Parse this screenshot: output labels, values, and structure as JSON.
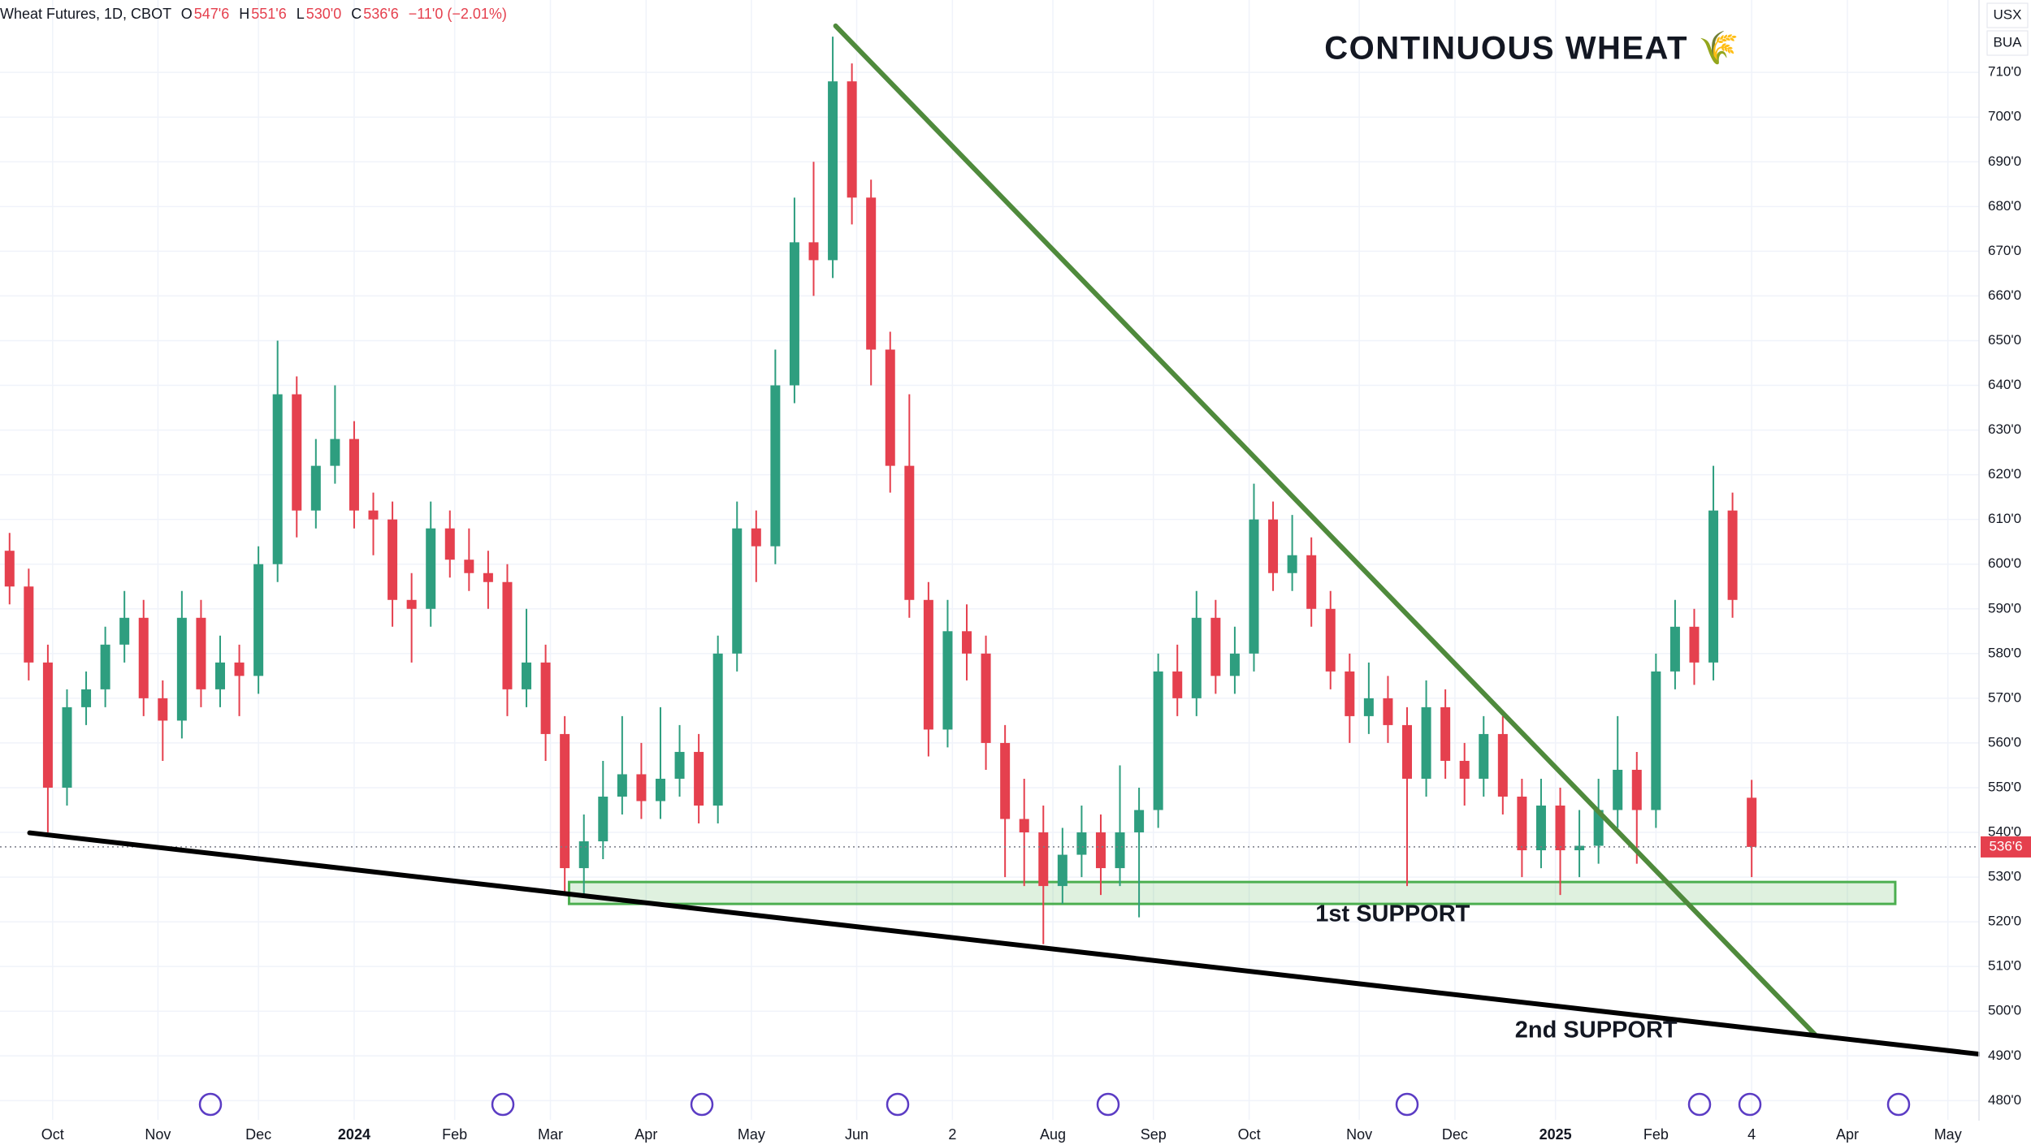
{
  "chart_data": {
    "type": "candlestick",
    "symbol": "Wheat Futures, 1D, CBOT",
    "legend_values": [
      {
        "label": "O",
        "value": "547'6"
      },
      {
        "label": "H",
        "value": "551'6"
      },
      {
        "label": "L",
        "value": "530'0"
      },
      {
        "label": "C",
        "value": "536'6"
      }
    ],
    "change": "−11'0 (−2.01%)",
    "title": "CONTINUOUS WHEAT 🌾",
    "currency": "USX",
    "unit": "BUA",
    "up_color": "#2e9e7f",
    "down_color": "#e5404e",
    "x": [
      2,
      6,
      10,
      14,
      18,
      22,
      26,
      30,
      34,
      38,
      42,
      46,
      50,
      54,
      58,
      62,
      66,
      70,
      74,
      78,
      82,
      86,
      90,
      94,
      98,
      102,
      106,
      110,
      114,
      118,
      122,
      126,
      130,
      134,
      138,
      142,
      146,
      150,
      154,
      158,
      162,
      166,
      170,
      174,
      178,
      182,
      186,
      190,
      194,
      198,
      202,
      206,
      210,
      214,
      218,
      222,
      226,
      230,
      234,
      238,
      242,
      246,
      250,
      254,
      258,
      262,
      266,
      270,
      274,
      278,
      282,
      286,
      290,
      294,
      298,
      302,
      306,
      310,
      314,
      318,
      322,
      326,
      330,
      334,
      338,
      342,
      346,
      350,
      354,
      358,
      362,
      366
    ],
    "open": [
      603,
      595,
      578,
      550,
      568,
      572,
      582,
      588,
      570,
      565,
      588,
      572,
      578,
      575,
      600,
      638,
      612,
      622,
      628,
      612,
      610,
      592,
      590,
      608,
      601,
      598,
      596,
      572,
      578,
      562,
      532,
      538,
      548,
      553,
      547,
      552,
      558,
      546,
      580,
      608,
      604,
      640,
      672,
      668,
      708,
      682,
      648,
      622,
      592,
      563,
      585,
      580,
      560,
      543,
      540,
      528,
      535,
      540,
      532,
      540,
      545,
      576,
      570,
      588,
      575,
      580,
      610,
      598,
      602,
      590,
      576,
      566,
      570,
      564,
      552,
      568,
      556,
      552,
      562,
      548,
      536,
      546,
      536,
      537,
      545,
      554,
      545,
      576,
      586,
      578,
      612,
      547.75
    ],
    "high": [
      607,
      599,
      582,
      572,
      576,
      586,
      594,
      592,
      574,
      594,
      592,
      584,
      582,
      604,
      650,
      642,
      628,
      640,
      632,
      616,
      614,
      598,
      614,
      612,
      608,
      603,
      600,
      590,
      582,
      566,
      544,
      556,
      566,
      560,
      568,
      564,
      562,
      584,
      614,
      612,
      648,
      682,
      690,
      718,
      712,
      686,
      652,
      638,
      596,
      592,
      591,
      584,
      564,
      552,
      546,
      541,
      546,
      544,
      555,
      550,
      580,
      582,
      594,
      592,
      586,
      618,
      614,
      611,
      606,
      594,
      580,
      578,
      575,
      568,
      574,
      572,
      560,
      566,
      566,
      552,
      552,
      550,
      545,
      552,
      566,
      558,
      580,
      592,
      590,
      622,
      616,
      551.75
    ],
    "low": [
      591,
      574,
      540,
      546,
      564,
      568,
      578,
      566,
      556,
      561,
      568,
      568,
      566,
      571,
      596,
      606,
      608,
      618,
      608,
      602,
      586,
      578,
      586,
      597,
      594,
      590,
      566,
      568,
      556,
      526,
      526,
      534,
      544,
      543,
      543,
      548,
      542,
      542,
      576,
      596,
      600,
      636,
      660,
      664,
      676,
      640,
      616,
      588,
      557,
      559,
      574,
      554,
      530,
      528,
      515,
      524,
      530,
      526,
      528,
      521,
      541,
      566,
      566,
      571,
      571,
      576,
      594,
      594,
      586,
      572,
      560,
      562,
      560,
      528,
      548,
      552,
      546,
      548,
      544,
      530,
      532,
      526,
      530,
      533,
      541,
      533,
      541,
      572,
      573,
      574,
      588,
      530
    ],
    "close": [
      595,
      578,
      550,
      568,
      572,
      582,
      588,
      570,
      565,
      588,
      572,
      578,
      575,
      600,
      638,
      612,
      622,
      628,
      612,
      610,
      592,
      590,
      608,
      601,
      598,
      596,
      572,
      578,
      562,
      532,
      538,
      548,
      553,
      547,
      552,
      558,
      546,
      580,
      608,
      604,
      640,
      672,
      668,
      708,
      682,
      648,
      622,
      592,
      563,
      585,
      580,
      560,
      543,
      540,
      528,
      535,
      540,
      532,
      540,
      545,
      576,
      570,
      588,
      575,
      580,
      610,
      598,
      602,
      590,
      576,
      566,
      570,
      564,
      552,
      568,
      556,
      552,
      562,
      548,
      536,
      546,
      536,
      537,
      545,
      554,
      545,
      576,
      586,
      578,
      612,
      592,
      536.75
    ],
    "xlim": [
      0,
      413.5
    ],
    "ylim": [
      475.7,
      726.2
    ],
    "xticks": [
      {
        "value": 11,
        "label": "Oct"
      },
      {
        "value": 33,
        "label": "Nov"
      },
      {
        "value": 54,
        "label": "Dec"
      },
      {
        "value": 74,
        "label": "2024"
      },
      {
        "value": 95,
        "label": "Feb"
      },
      {
        "value": 115,
        "label": "Mar"
      },
      {
        "value": 135,
        "label": "Apr"
      },
      {
        "value": 157,
        "label": "May"
      },
      {
        "value": 179,
        "label": "Jun"
      },
      {
        "value": 199,
        "label": "2"
      },
      {
        "value": 220,
        "label": "Aug"
      },
      {
        "value": 241,
        "label": "Sep"
      },
      {
        "value": 261,
        "label": "Oct"
      },
      {
        "value": 284,
        "label": "Nov"
      },
      {
        "value": 304,
        "label": "Dec"
      },
      {
        "value": 325,
        "label": "2025"
      },
      {
        "value": 346,
        "label": "Feb"
      },
      {
        "value": 366,
        "label": "4"
      },
      {
        "value": 386,
        "label": "Apr"
      },
      {
        "value": 407,
        "label": "May"
      }
    ],
    "yticks": [
      {
        "value": 480,
        "label": "480'0"
      },
      {
        "value": 490,
        "label": "490'0"
      },
      {
        "value": 500,
        "label": "500'0"
      },
      {
        "value": 510,
        "label": "510'0"
      },
      {
        "value": 520,
        "label": "520'0"
      },
      {
        "value": 530,
        "label": "530'0"
      },
      {
        "value": 540,
        "label": "540'0"
      },
      {
        "value": 550,
        "label": "550'0"
      },
      {
        "value": 560,
        "label": "560'0"
      },
      {
        "value": 570,
        "label": "570'0"
      },
      {
        "value": 580,
        "label": "580'0"
      },
      {
        "value": 590,
        "label": "590'0"
      },
      {
        "value": 600,
        "label": "600'0"
      },
      {
        "value": 610,
        "label": "610'0"
      },
      {
        "value": 620,
        "label": "620'0"
      },
      {
        "value": 630,
        "label": "630'0"
      },
      {
        "value": 640,
        "label": "640'0"
      },
      {
        "value": 650,
        "label": "650'0"
      },
      {
        "value": 660,
        "label": "660'0"
      },
      {
        "value": 670,
        "label": "670'0"
      },
      {
        "value": 680,
        "label": "680'0"
      },
      {
        "value": 690,
        "label": "690'0"
      },
      {
        "value": 700,
        "label": "700'0"
      },
      {
        "value": 710,
        "label": "710'0"
      }
    ],
    "grid": true,
    "last_price": {
      "value": 536.75,
      "label": "536'6"
    },
    "trendlines": [
      {
        "color": "#4f8a3c",
        "x1": 174.6,
        "y1": 720.4,
        "x2": 379.2,
        "y2": 494.8
      },
      {
        "color": "#000000",
        "x1": 6.2,
        "y1": 539.9,
        "x2": 413.5,
        "y2": 490.4
      }
    ],
    "zones": [
      {
        "color": "#4caf50",
        "x1": 118.9,
        "x2": 396,
        "y1": 528.9,
        "y2": 524.0
      }
    ],
    "annotations": [
      {
        "text": "1st SUPPORT",
        "x": 291,
        "y": 521.5
      },
      {
        "text": "2nd SUPPORT",
        "x": 333.5,
        "y": 495.5
      }
    ]
  }
}
